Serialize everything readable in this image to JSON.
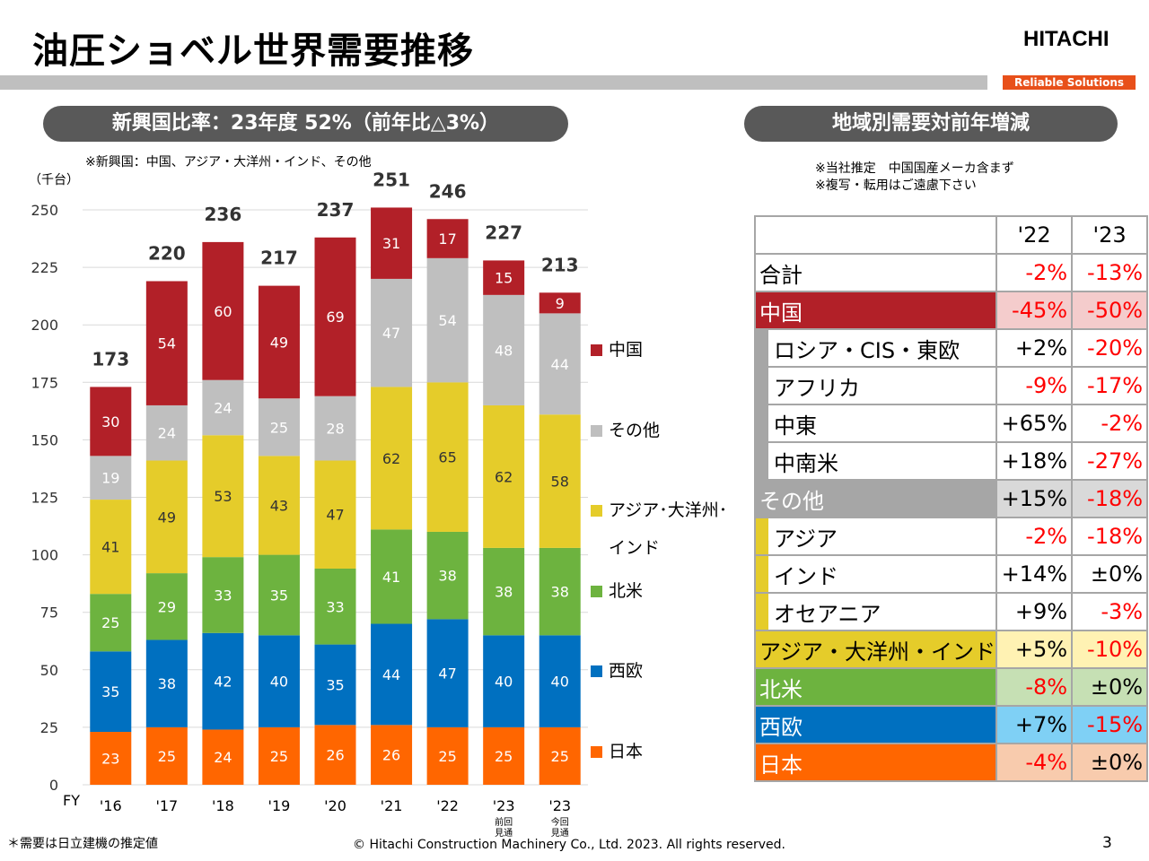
{
  "header": {
    "title": "油圧ショベル世界需要推移",
    "logo": "HITACHI",
    "tagline": "Reliable Solutions"
  },
  "left_banner": "新興国比率：23年度 52%（前年比△3%）",
  "left_note": "※新興国：中国、アジア・大洋州・インド、その他",
  "chart_data": {
    "type": "bar",
    "stacked": true,
    "y_label": "（千台）",
    "x_label": "FY",
    "categories": [
      "'16",
      "'17",
      "'18",
      "'19",
      "'20",
      "'21",
      "'22",
      "'23",
      "'23"
    ],
    "category_sublabels": [
      null,
      null,
      null,
      null,
      null,
      null,
      null,
      "前回見通",
      "今回見通"
    ],
    "series": [
      {
        "name": "日本",
        "color": "#ff6600",
        "label_color": "#ffffff",
        "values": [
          23,
          25,
          24,
          25,
          26,
          26,
          25,
          25,
          25
        ]
      },
      {
        "name": "西欧",
        "color": "#0070c0",
        "label_color": "#ffffff",
        "values": [
          35,
          38,
          42,
          40,
          35,
          44,
          47,
          40,
          40
        ]
      },
      {
        "name": "北米",
        "color": "#6db33f",
        "label_color": "#ffffff",
        "values": [
          25,
          29,
          33,
          35,
          33,
          41,
          38,
          38,
          38
        ]
      },
      {
        "name": "アジア･大洋州･インド",
        "color": "#e5cc2a",
        "label_color": "#333333",
        "values": [
          41,
          49,
          53,
          43,
          47,
          62,
          65,
          62,
          58
        ]
      },
      {
        "name": "その他",
        "color": "#bfbfbf",
        "label_color": "#ffffff",
        "values": [
          19,
          24,
          24,
          25,
          28,
          47,
          54,
          48,
          44
        ]
      },
      {
        "name": "中国",
        "color": "#b22028",
        "label_color": "#ffffff",
        "values": [
          30,
          54,
          60,
          49,
          69,
          31,
          17,
          15,
          9
        ]
      }
    ],
    "totals": [
      173,
      220,
      236,
      217,
      237,
      251,
      246,
      227,
      213
    ],
    "ylim": [
      0,
      250
    ],
    "yticks": [
      0,
      25,
      50,
      75,
      100,
      125,
      150,
      175,
      200,
      225,
      250
    ],
    "grid": true
  },
  "right_banner": "地域別需要対前年増減",
  "right_notes": [
    "※当社推定　中国国産メーカ含まず",
    "※複写・転用はご遠慮下さい"
  ],
  "table": {
    "columns": [
      "'22",
      "'23"
    ],
    "rows": [
      {
        "label": "合計",
        "values": [
          "-2%",
          "-13%"
        ]
      },
      {
        "label": "中国",
        "values": [
          "-45%",
          "-50%"
        ],
        "color": "#b22028",
        "value_bg": "#f4cccc"
      },
      {
        "label": "ロシア・CIS・東欧",
        "values": [
          "+2%",
          "-20%"
        ],
        "bar_color": "#a6a6a6"
      },
      {
        "label": "アフリカ",
        "values": [
          "-9%",
          "-17%"
        ],
        "bar_color": "#a6a6a6"
      },
      {
        "label": "中東",
        "values": [
          "+65%",
          "-2%"
        ],
        "bar_color": "#a6a6a6"
      },
      {
        "label": "中南米",
        "values": [
          "+18%",
          "-27%"
        ],
        "bar_color": "#a6a6a6"
      },
      {
        "label": "その他",
        "values": [
          "+15%",
          "-18%"
        ],
        "color": "#a6a6a6",
        "value_bg": "#d9d9d9"
      },
      {
        "label": "アジア",
        "values": [
          "-2%",
          "-18%"
        ],
        "bar_color": "#e5cc2a"
      },
      {
        "label": "インド",
        "values": [
          "+14%",
          "±0%"
        ],
        "bar_color": "#e5cc2a"
      },
      {
        "label": "オセアニア",
        "values": [
          "+9%",
          "-3%"
        ],
        "bar_color": "#e5cc2a"
      },
      {
        "label": "アジア・大洋州・インド",
        "values": [
          "+5%",
          "-10%"
        ],
        "color": "#e5cc2a",
        "value_bg": "#fff2b3"
      },
      {
        "label": "北米",
        "values": [
          "-8%",
          "±0%"
        ],
        "color": "#6db33f",
        "value_bg": "#c6e0b4"
      },
      {
        "label": "西欧",
        "values": [
          "+7%",
          "-15%"
        ],
        "color": "#0070c0",
        "value_bg": "#7fd0f5"
      },
      {
        "label": "日本",
        "values": [
          "-4%",
          "±0%"
        ],
        "color": "#ff6600",
        "value_bg": "#f8cbad"
      }
    ]
  },
  "footer": {
    "note": "＊需要は日立建機の推定値",
    "copyright": "© Hitachi Construction Machinery Co., Ltd. 2023. All rights reserved.",
    "page": "3"
  }
}
